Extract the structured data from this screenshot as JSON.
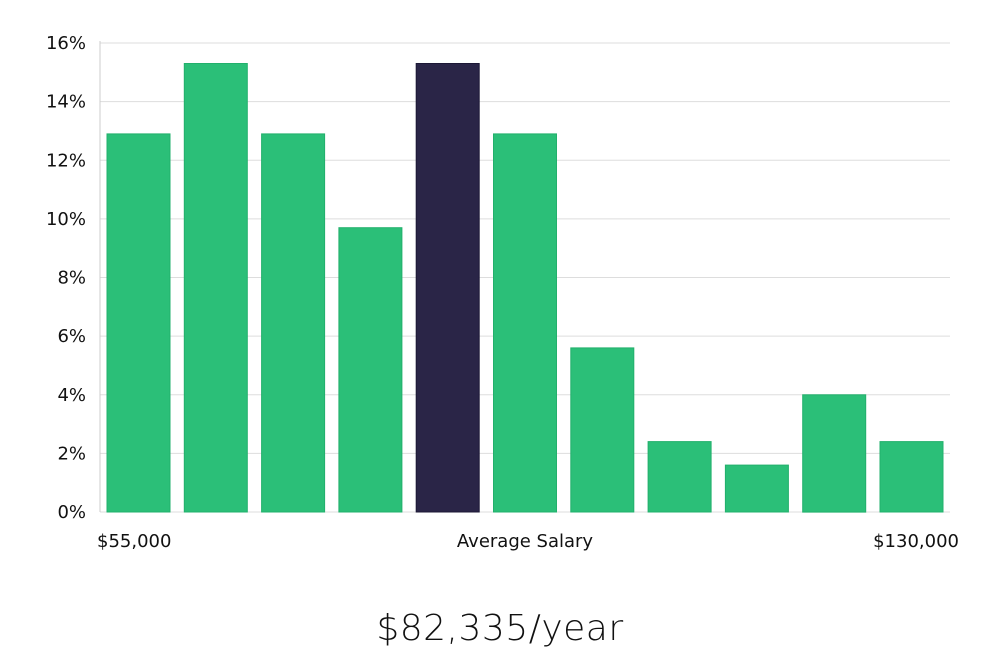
{
  "chart_data": {
    "type": "bar",
    "values": [
      12.9,
      15.3,
      12.9,
      9.7,
      15.3,
      12.9,
      5.6,
      2.4,
      1.6,
      4.0,
      2.4
    ],
    "highlight_index": 4,
    "yticks": [
      "0%",
      "2%",
      "4%",
      "6%",
      "8%",
      "10%",
      "12%",
      "14%",
      "16%"
    ],
    "ylim": [
      0,
      16
    ],
    "x_labels": {
      "left": "$55,000",
      "center": "Average Salary",
      "right": "$130,000"
    },
    "grid": true,
    "colors": {
      "bar": "#2bbf78",
      "highlight": "#2a2547",
      "grid": "#dddddd",
      "axis": "#cccccc"
    }
  },
  "summary": {
    "average_salary": "$82,335/year"
  }
}
